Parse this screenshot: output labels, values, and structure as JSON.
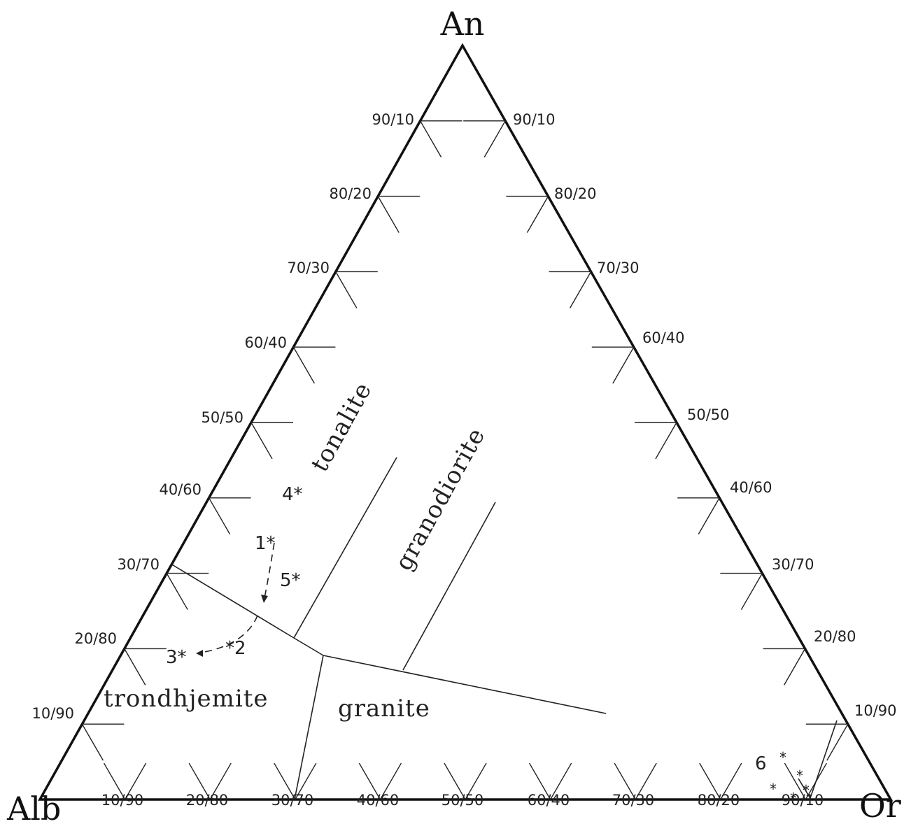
{
  "vertices": {
    "top": "An",
    "left": "Alb",
    "right": "Or"
  },
  "left_edge_ticks": [
    "90/10",
    "80/20",
    "70/30",
    "60/40",
    "50/50",
    "40/60",
    "30/70",
    "20/80",
    "10/90"
  ],
  "right_edge_ticks": [
    "90/10",
    "80/20",
    "70/30",
    "60/40",
    "50/50",
    "40/60",
    "30/70",
    "20/80",
    "10/90"
  ],
  "base_ticks": [
    "10/90",
    "20/80",
    "30/70",
    "40/60",
    "50/50",
    "60/40",
    "70/30",
    "80/20",
    "90/10"
  ],
  "fields": {
    "tonalite": "tonalite",
    "granodiorite": "granodiorite",
    "trondhjemite": "trondhjemite",
    "granite": "granite"
  },
  "samples": {
    "s1": "1*",
    "s2": "*2",
    "s3": "3*",
    "s4": "4*",
    "s5": "5*",
    "s6": "6",
    "star": "*"
  }
}
